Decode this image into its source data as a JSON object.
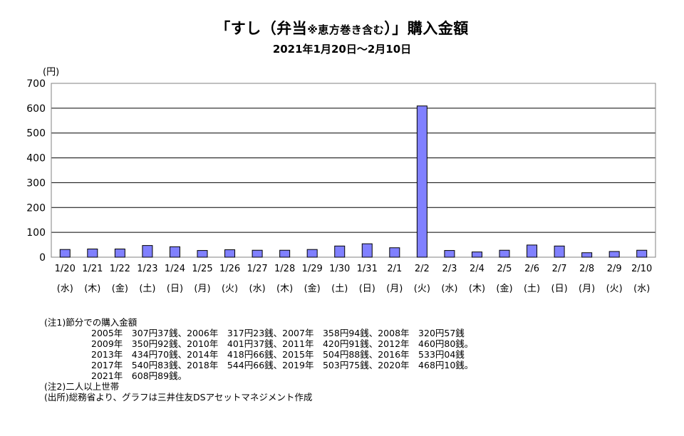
{
  "chart_data": {
    "type": "bar",
    "title_main": "「すし（弁当",
    "title_small": "※恵方巻き含む",
    "title_end": "）」購入金額",
    "subtitle": "2021年1月20日～2月10日",
    "ylabel": "(円)",
    "ylim": [
      0,
      700
    ],
    "yticks": [
      0,
      100,
      200,
      300,
      400,
      500,
      600,
      700
    ],
    "grid": true,
    "categories": [
      "1/20",
      "1/21",
      "1/22",
      "1/23",
      "1/24",
      "1/25",
      "1/26",
      "1/27",
      "1/28",
      "1/29",
      "1/30",
      "1/31",
      "2/1",
      "2/2",
      "2/3",
      "2/4",
      "2/5",
      "2/6",
      "2/7",
      "2/8",
      "2/9",
      "2/10"
    ],
    "weekdays": [
      "(水)",
      "(木)",
      "(金)",
      "(土)",
      "(日)",
      "(月)",
      "(火)",
      "(水)",
      "(木)",
      "(金)",
      "(土)",
      "(日)",
      "(月)",
      "(火)",
      "(水)",
      "(木)",
      "(金)",
      "(土)",
      "(日)",
      "(月)",
      "(火)",
      "(水)"
    ],
    "values": [
      31,
      33,
      33,
      47,
      42,
      27,
      30,
      28,
      28,
      31,
      45,
      54,
      38,
      609,
      27,
      21,
      28,
      49,
      45,
      18,
      23,
      28
    ],
    "bar_color": "#8080ff"
  },
  "notes": {
    "line1": "(注1)節分での購入金額",
    "line2": "2005年　307円37銭、2006年　317円23銭、2007年　358円94銭、2008年　320円57銭",
    "line3": "2009年　350円92銭、2010年　401円37銭、2011年　420円91銭、2012年　460円80銭。",
    "line4": "2013年　434円70銭、2014年　418円66銭、2015年　504円88銭、2016年　533円04銭",
    "line5": "2017年　540円83銭、2018年　544円66銭、2019年　503円75銭、2020年　468円10銭。",
    "line6": "2021年　608円89銭。",
    "line7": "(注2)二人以上世帯",
    "line8": "(出所)総務省より、グラフは三井住友DSアセットマネジメント作成"
  }
}
